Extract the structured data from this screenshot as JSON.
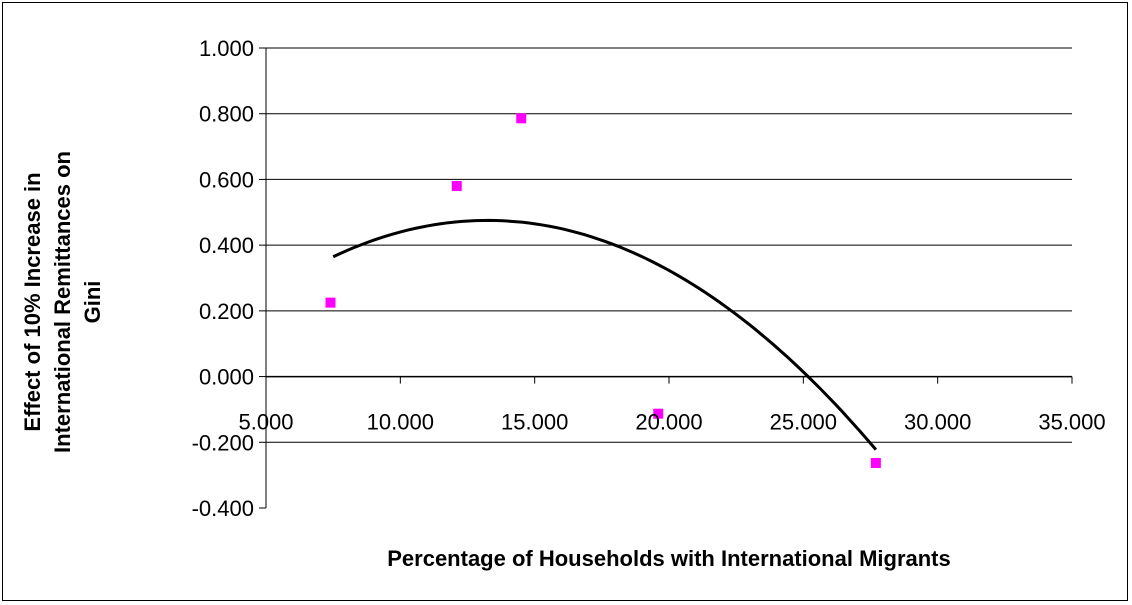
{
  "chart_data": {
    "type": "scatter",
    "title": "",
    "xlabel": "Percentage of Households with International Migrants",
    "ylabel_lines": [
      "Effect of 10% Increase in",
      "International Remittances on",
      "Gini"
    ],
    "xlim": [
      5,
      35
    ],
    "ylim": [
      -0.4,
      1.0
    ],
    "x_ticks": [
      5,
      10,
      15,
      20,
      25,
      30,
      35
    ],
    "x_tick_labels": [
      "5.000",
      "10.000",
      "15.000",
      "20.000",
      "25.000",
      "30.000",
      "35.000"
    ],
    "y_ticks": [
      -0.4,
      -0.2,
      0,
      0.2,
      0.4,
      0.6,
      0.8,
      1.0
    ],
    "y_tick_labels": [
      "-0.400",
      "-0.200",
      "0.000",
      "0.200",
      "0.400",
      "0.600",
      "0.800",
      "1.000"
    ],
    "grid": "horizontal",
    "legend": "none",
    "marker_color": "#ff00ff",
    "trend_color": "#000000",
    "series": [
      {
        "kind": "points",
        "points": [
          {
            "x": 7.4,
            "y": 0.225
          },
          {
            "x": 12.1,
            "y": 0.58
          },
          {
            "x": 14.5,
            "y": 0.786
          },
          {
            "x": 19.6,
            "y": -0.113
          },
          {
            "x": 27.7,
            "y": -0.263
          }
        ]
      },
      {
        "kind": "trendline",
        "fit": "polynomial-2",
        "x_range": [
          7.5,
          27.7
        ],
        "coefficients": [
          -0.111,
          0.0885,
          -0.00334
        ]
      }
    ]
  }
}
